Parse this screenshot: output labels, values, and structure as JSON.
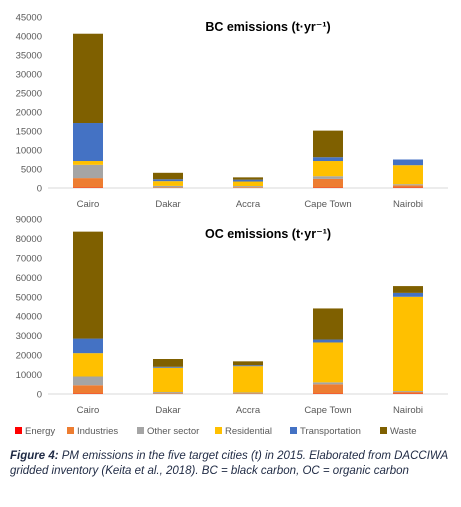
{
  "chart_data": [
    {
      "type": "bar",
      "stacked": true,
      "title": "BC emissions (t·yr⁻¹)",
      "categories": [
        "Cairo",
        "Dakar",
        "Accra",
        "Cape Town",
        "Nairobi"
      ],
      "ylim": [
        0,
        45000
      ],
      "yticks": [
        0,
        5000,
        10000,
        15000,
        20000,
        25000,
        30000,
        35000,
        40000,
        45000
      ],
      "grid": false,
      "legend": "bottom",
      "series": [
        {
          "name": "Energy",
          "color": "#ff0000",
          "values": [
            100,
            0,
            0,
            100,
            100
          ]
        },
        {
          "name": "Industries",
          "color": "#ed7d31",
          "values": [
            2500,
            150,
            200,
            2300,
            600
          ]
        },
        {
          "name": "Other sector",
          "color": "#a5a5a5",
          "values": [
            3500,
            400,
            300,
            700,
            300
          ]
        },
        {
          "name": "Residential",
          "color": "#ffc000",
          "values": [
            1000,
            1250,
            1200,
            4000,
            5000
          ]
        },
        {
          "name": "Transportation",
          "color": "#4472c4",
          "values": [
            10000,
            500,
            500,
            1000,
            1500
          ]
        },
        {
          "name": "Waste",
          "color": "#7f6000",
          "values": [
            23500,
            1700,
            600,
            7000,
            0
          ]
        }
      ]
    },
    {
      "type": "bar",
      "stacked": true,
      "title": "OC emissions (t·yr⁻¹)",
      "categories": [
        "Cairo",
        "Dakar",
        "Accra",
        "Cape Town",
        "Nairobi"
      ],
      "ylim": [
        0,
        90000
      ],
      "yticks": [
        0,
        10000,
        20000,
        30000,
        40000,
        50000,
        60000,
        70000,
        80000,
        90000
      ],
      "grid": false,
      "legend": "bottom",
      "series": [
        {
          "name": "Energy",
          "color": "#ff0000",
          "values": [
            200,
            0,
            0,
            200,
            200
          ]
        },
        {
          "name": "Industries",
          "color": "#ed7d31",
          "values": [
            4300,
            300,
            300,
            4800,
            800
          ]
        },
        {
          "name": "Other sector",
          "color": "#a5a5a5",
          "values": [
            4500,
            700,
            500,
            1000,
            500
          ]
        },
        {
          "name": "Residential",
          "color": "#ffc000",
          "values": [
            12000,
            12500,
            13500,
            20500,
            48500
          ]
        },
        {
          "name": "Transportation",
          "color": "#4472c4",
          "values": [
            7500,
            500,
            500,
            1500,
            2000
          ]
        },
        {
          "name": "Waste",
          "color": "#7f6000",
          "values": [
            55000,
            4000,
            2000,
            16000,
            3500
          ]
        }
      ]
    }
  ],
  "legend": [
    {
      "label": "Energy",
      "color": "#ff0000"
    },
    {
      "label": "Industries",
      "color": "#ed7d31"
    },
    {
      "label": "Other sector",
      "color": "#a5a5a5"
    },
    {
      "label": "Residential",
      "color": "#ffc000"
    },
    {
      "label": "Transportation",
      "color": "#4472c4"
    },
    {
      "label": "Waste",
      "color": "#7f6000"
    }
  ],
  "caption": {
    "label": "Figure 4:",
    "text": "PM emissions in the five target cities (t) in 2015.  Elaborated from DACCIWA gridded inventory (Keita et al., 2018). BC = black carbon, OC = organic carbon"
  }
}
